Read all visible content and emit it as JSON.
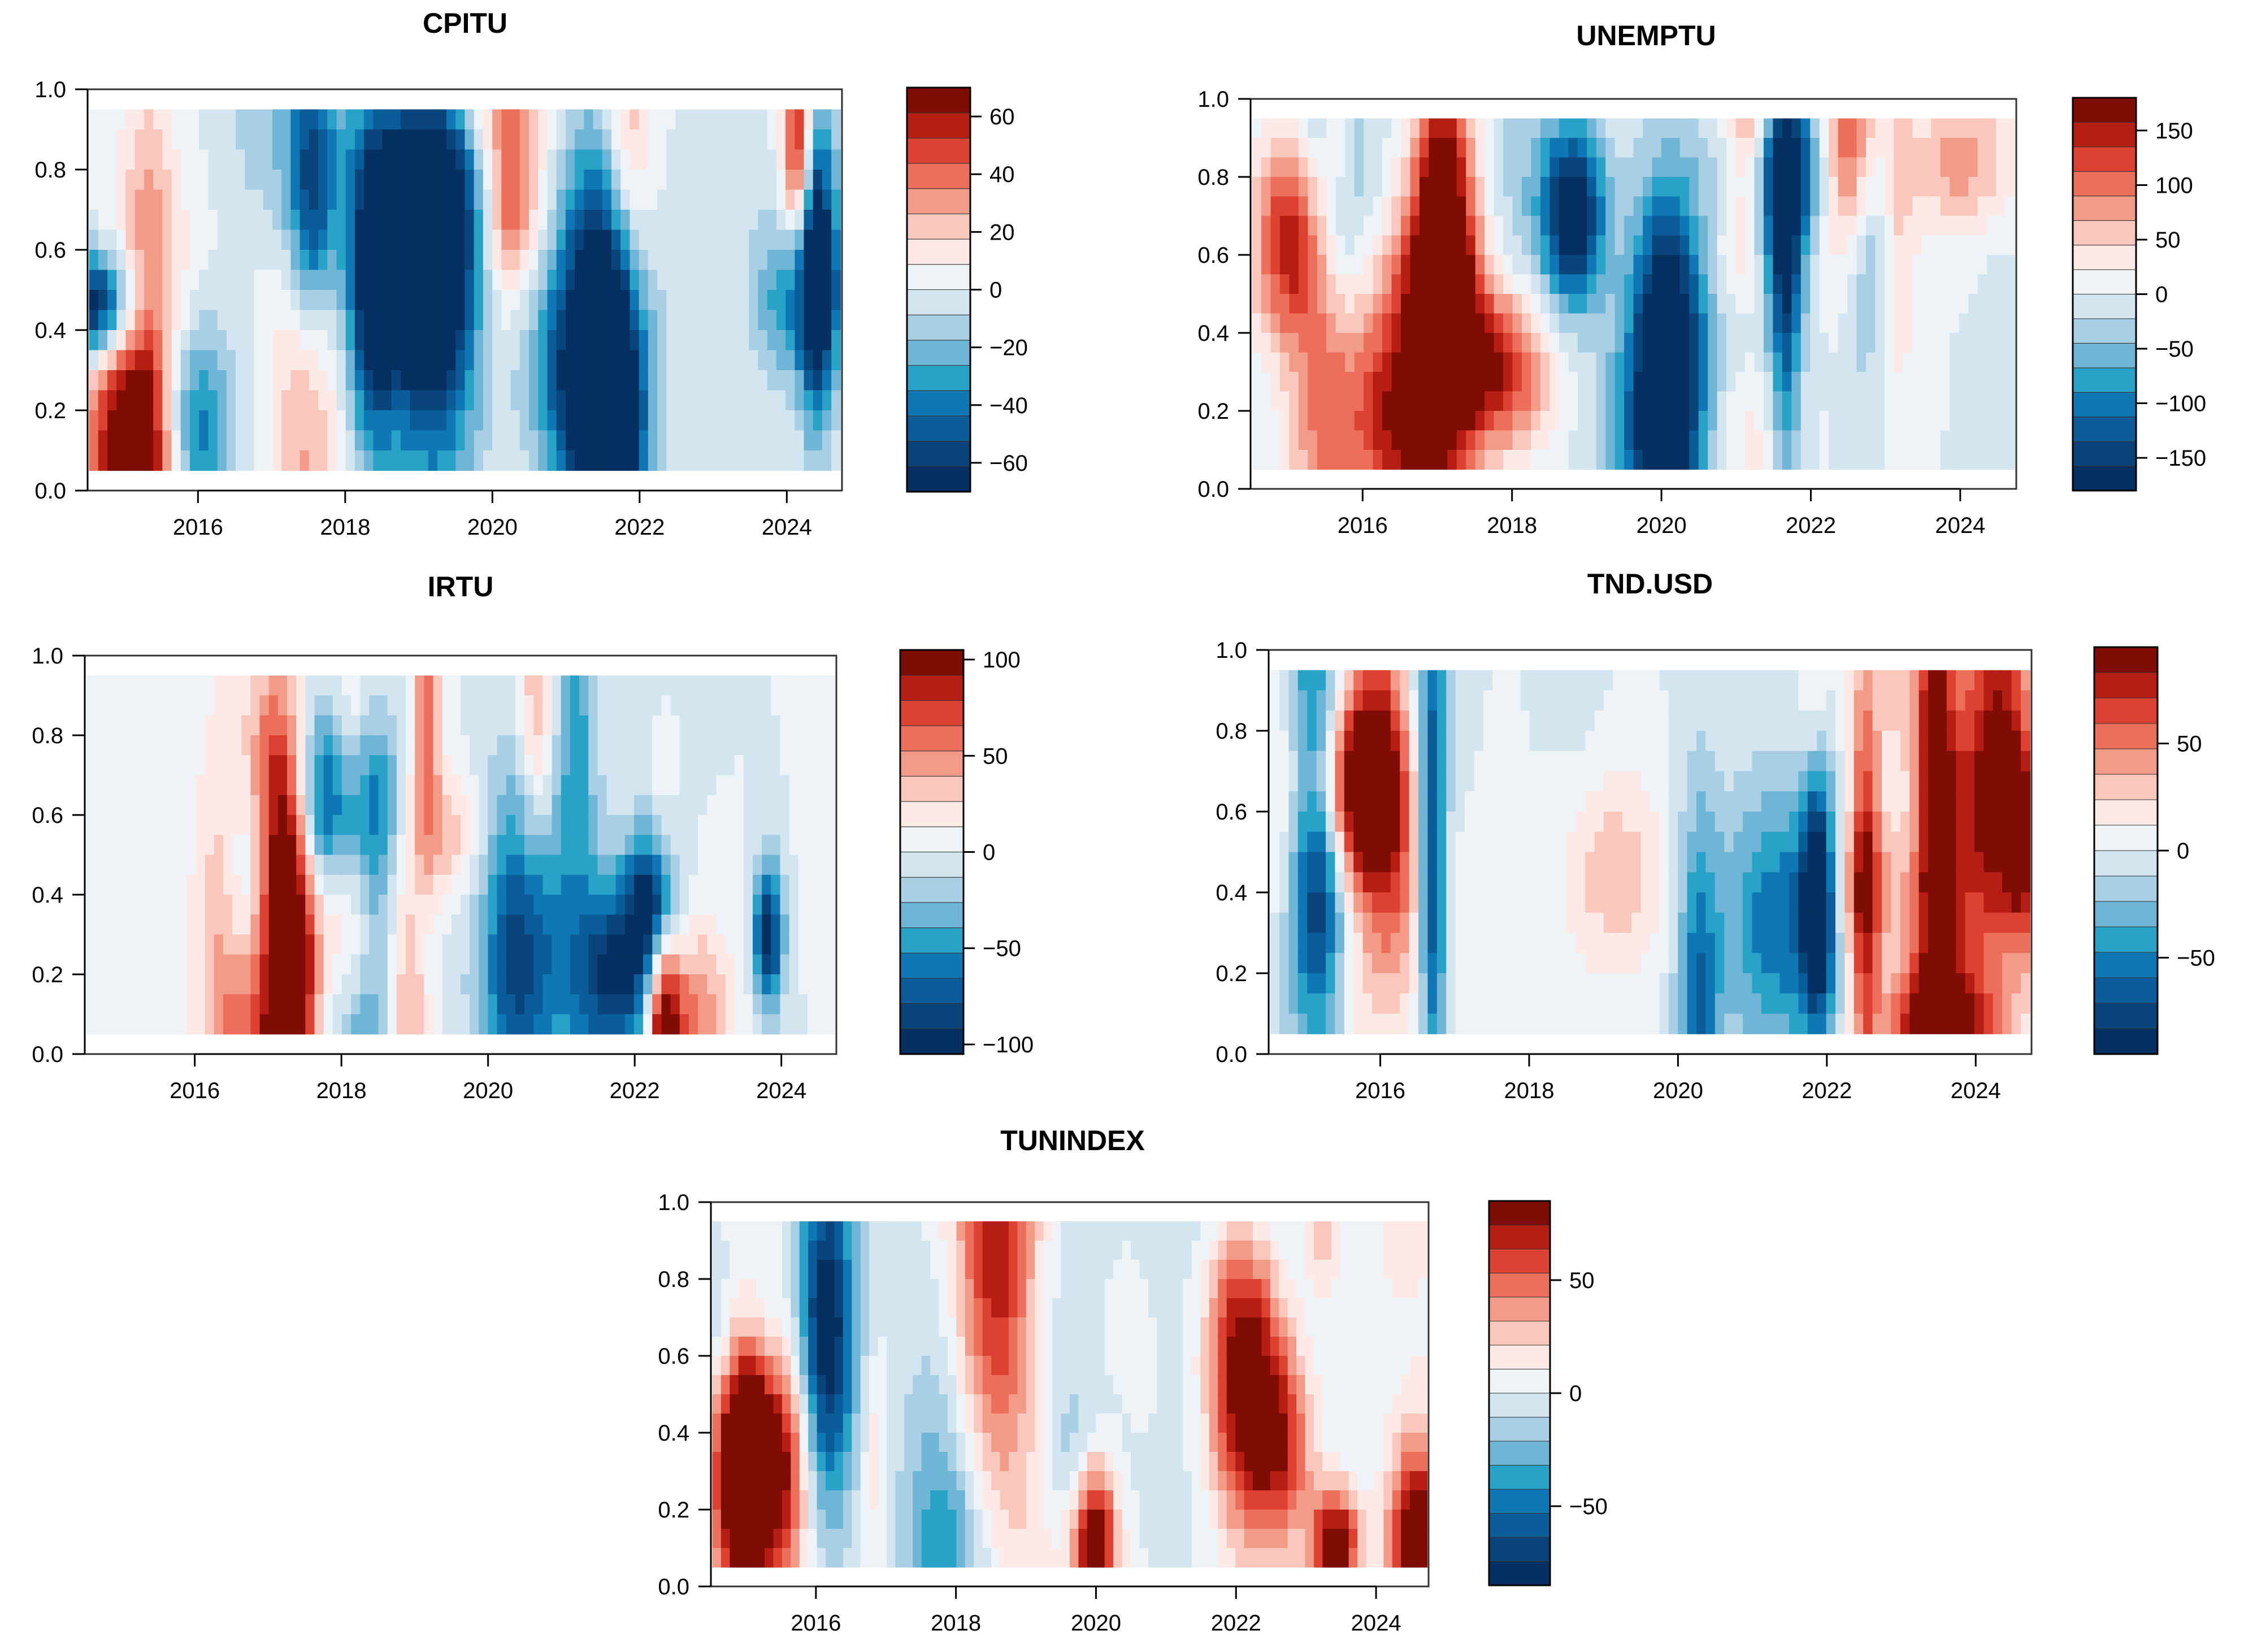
{
  "chart_data": [
    {
      "type": "heatmap",
      "title": "CPITU",
      "xlabel": "",
      "ylabel": "",
      "xlim": [
        2014.5,
        2024.75
      ],
      "ylim": [
        0.0,
        1.0
      ],
      "x_ticks": [
        "2016",
        "2018",
        "2020",
        "2022",
        "2024"
      ],
      "y_ticks": [
        "0.0",
        "0.2",
        "0.4",
        "0.6",
        "0.8",
        "1.0"
      ],
      "colorbar": {
        "min": -70,
        "max": 70,
        "levels": 14,
        "ticks": [
          "60",
          "40",
          "20",
          "0",
          "−20",
          "−40",
          "−60"
        ],
        "tick_values": [
          60,
          40,
          20,
          0,
          -20,
          -40,
          -60
        ]
      }
    },
    {
      "type": "heatmap",
      "title": "UNEMPTU",
      "xlabel": "",
      "ylabel": "",
      "xlim": [
        2014.5,
        2024.75
      ],
      "ylim": [
        0.0,
        1.0
      ],
      "x_ticks": [
        "2016",
        "2018",
        "2020",
        "2022",
        "2024"
      ],
      "y_ticks": [
        "0.0",
        "0.2",
        "0.4",
        "0.6",
        "0.8",
        "1.0"
      ],
      "colorbar": {
        "min": -180,
        "max": 180,
        "levels": 14,
        "ticks": [
          "150",
          "100",
          "50",
          "0",
          "−50",
          "−100",
          "−150"
        ],
        "tick_values": [
          150,
          100,
          50,
          0,
          -50,
          -100,
          -150
        ]
      }
    },
    {
      "type": "heatmap",
      "title": "IRTU",
      "xlabel": "",
      "ylabel": "",
      "xlim": [
        2014.5,
        2024.75
      ],
      "ylim": [
        0.0,
        1.0
      ],
      "x_ticks": [
        "2016",
        "2018",
        "2020",
        "2022",
        "2024"
      ],
      "y_ticks": [
        "0.0",
        "0.2",
        "0.4",
        "0.6",
        "0.8",
        "1.0"
      ],
      "colorbar": {
        "min": -105,
        "max": 105,
        "levels": 14,
        "ticks": [
          "100",
          "50",
          "0",
          "−50",
          "−100"
        ],
        "tick_values": [
          100,
          50,
          0,
          -50,
          -100
        ]
      }
    },
    {
      "type": "heatmap",
      "title": "TND.USD",
      "xlabel": "",
      "ylabel": "",
      "xlim": [
        2014.5,
        2024.75
      ],
      "ylim": [
        0.0,
        1.0
      ],
      "x_ticks": [
        "2016",
        "2018",
        "2020",
        "2022",
        "2024"
      ],
      "y_ticks": [
        "0.0",
        "0.2",
        "0.4",
        "0.6",
        "0.8",
        "1.0"
      ],
      "colorbar": {
        "min": -95,
        "max": 95,
        "levels": 14,
        "ticks": [
          "50",
          "0",
          "−50"
        ],
        "tick_values": [
          50,
          0,
          -50
        ]
      }
    },
    {
      "type": "heatmap",
      "title": "TUNINDEX",
      "xlabel": "",
      "ylabel": "",
      "xlim": [
        2014.5,
        2024.75
      ],
      "ylim": [
        0.0,
        1.0
      ],
      "x_ticks": [
        "2016",
        "2018",
        "2020",
        "2022",
        "2024"
      ],
      "y_ticks": [
        "0.0",
        "0.2",
        "0.4",
        "0.6",
        "0.8",
        "1.0"
      ],
      "colorbar": {
        "min": -85,
        "max": 85,
        "levels": 14,
        "ticks": [
          "50",
          "0",
          "−50"
        ],
        "tick_values": [
          50,
          0,
          -50
        ]
      }
    }
  ],
  "colors": {
    "scale": [
      "#053061",
      "#09457a",
      "#0b5d9a",
      "#0f78b4",
      "#29a2c8",
      "#6fb6d6",
      "#a8cfe3",
      "#d3e6f0",
      "#eef3f7",
      "#fde9e5",
      "#f9c7bc",
      "#f39b89",
      "#ec6f5b",
      "#dd4131",
      "#b71e13",
      "#7f0d06"
    ],
    "background": "#ffffff"
  }
}
